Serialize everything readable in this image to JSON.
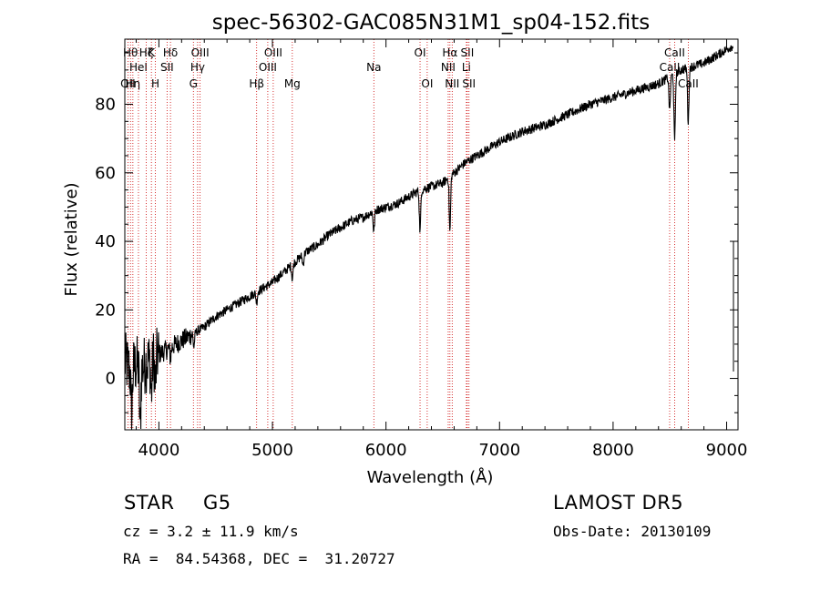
{
  "chart_data": {
    "type": "line",
    "title": "spec-56302-GAC085N31M1_sp04-152.fits",
    "xlabel": "Wavelength (Å)",
    "ylabel": "Flux (relative)",
    "xlim": [
      3700,
      9100
    ],
    "ylim": [
      -15,
      99
    ],
    "x_ticks": [
      4000,
      5000,
      6000,
      7000,
      8000,
      9000
    ],
    "y_ticks": [
      0,
      20,
      40,
      60,
      80
    ],
    "grid": false,
    "legend": "none",
    "series": [
      {
        "x": [
          3700,
          3750,
          3800,
          3850,
          3900,
          3950,
          4000,
          4050,
          4100,
          4150,
          4200,
          4300,
          4400,
          4500,
          4600,
          4700,
          4800,
          4900,
          5000,
          5100,
          5200,
          5300,
          5400,
          5500,
          5600,
          5700,
          5800,
          5900,
          6000,
          6100,
          6200,
          6300,
          6400,
          6500,
          6600,
          6700,
          6800,
          6900,
          7000,
          7200,
          7400,
          7600,
          7800,
          8000,
          8200,
          8400,
          8500,
          8600,
          8700,
          8800,
          8900,
          9000,
          9050
        ],
        "y": [
          5,
          2,
          4,
          3,
          5,
          6,
          7,
          8,
          9,
          10,
          11,
          13,
          15,
          18,
          20,
          22,
          24,
          26,
          28,
          31,
          34,
          37,
          39,
          42,
          44,
          46,
          47,
          49,
          50,
          51,
          53,
          55,
          56,
          57,
          60,
          63,
          65,
          67,
          69,
          72,
          74,
          77,
          80,
          82,
          84,
          86,
          88,
          90,
          91,
          92,
          94,
          96,
          97
        ]
      }
    ],
    "absorption_dips": [
      {
        "x": 3760,
        "depth": 14
      },
      {
        "x": 3835,
        "depth": 18
      },
      {
        "x": 3934,
        "depth": 10
      },
      {
        "x": 3969,
        "depth": 8
      },
      {
        "x": 4102,
        "depth": 3
      },
      {
        "x": 4308,
        "depth": 4
      },
      {
        "x": 4861,
        "depth": 3
      },
      {
        "x": 5175,
        "depth": 4
      },
      {
        "x": 5270,
        "depth": 3
      },
      {
        "x": 5893,
        "depth": 6
      },
      {
        "x": 6300,
        "depth": 12
      },
      {
        "x": 6563,
        "depth": 16
      },
      {
        "x": 8498,
        "depth": 10
      },
      {
        "x": 8542,
        "depth": 20
      },
      {
        "x": 8662,
        "depth": 16
      }
    ],
    "line_markers": [
      {
        "x": 3727,
        "label": "OII",
        "row": 3
      },
      {
        "x": 3750,
        "label": "Hθ",
        "row": 1
      },
      {
        "x": 3771,
        "label": "Hη",
        "row": 3
      },
      {
        "x": 3820,
        "label": "HeI",
        "row": 2
      },
      {
        "x": 3889,
        "label": "Hζ",
        "row": 1
      },
      {
        "x": 3934,
        "label": "K",
        "row": 1
      },
      {
        "x": 3969,
        "label": "H",
        "row": 3
      },
      {
        "x": 4072,
        "label": "SII",
        "row": 2
      },
      {
        "x": 4102,
        "label": "Hδ",
        "row": 1
      },
      {
        "x": 4304,
        "label": "G",
        "row": 3
      },
      {
        "x": 4341,
        "label": "Hγ",
        "row": 2
      },
      {
        "x": 4363,
        "label": "OIII",
        "row": 1
      },
      {
        "x": 4861,
        "label": "Hβ",
        "row": 3
      },
      {
        "x": 4959,
        "label": "OIII",
        "row": 2
      },
      {
        "x": 5007,
        "label": "OIII",
        "row": 1
      },
      {
        "x": 5175,
        "label": "Mg",
        "row": 3
      },
      {
        "x": 5893,
        "label": "Na",
        "row": 2
      },
      {
        "x": 6300,
        "label": "OI",
        "row": 1
      },
      {
        "x": 6363,
        "label": "OI",
        "row": 3
      },
      {
        "x": 6548,
        "label": "NII",
        "row": 2
      },
      {
        "x": 6563,
        "label": "Hα",
        "row": 1
      },
      {
        "x": 6583,
        "label": "NII",
        "row": 3
      },
      {
        "x": 6708,
        "label": "Li",
        "row": 2
      },
      {
        "x": 6716,
        "label": "SII",
        "row": 1
      },
      {
        "x": 6731,
        "label": "SII",
        "row": 3
      },
      {
        "x": 8498,
        "label": "CaII",
        "row": 2
      },
      {
        "x": 8542,
        "label": "CaII",
        "row": 1
      },
      {
        "x": 8662,
        "label": "CaII",
        "row": 3
      }
    ]
  },
  "info": {
    "object_class": "STAR",
    "subclass": "G5",
    "survey": "LAMOST DR5",
    "redshift": "cz = 3.2 ± 11.9 km/s",
    "obs_date": "Obs-Date: 20130109",
    "coords": "RA =  84.54368, DEC =  31.20727"
  },
  "colors": {
    "spectrum": "#000000",
    "marker_lines": "#cc0000",
    "background": "#ffffff"
  }
}
